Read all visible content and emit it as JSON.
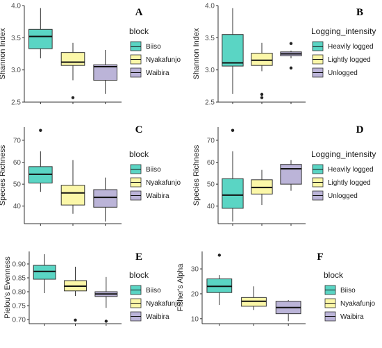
{
  "chart_data": [
    {
      "type": "box",
      "panel_label": "A",
      "ylabel": "Shannon Index",
      "ylim": [
        2.5,
        4.0
      ],
      "yticks": [
        2.5,
        3.0,
        3.5,
        4.0
      ],
      "ytick_labels": [
        "2.5",
        "3.0",
        "3.5",
        "4.0"
      ],
      "legend_title": "block",
      "categories": [
        "Biiso",
        "Nyakafunjo",
        "Waibira"
      ],
      "colors": [
        "#5ad5c4",
        "#fbf7a8",
        "#bbb4d8"
      ],
      "boxes": [
        {
          "whisker_low": 3.18,
          "q1": 3.33,
          "median": 3.52,
          "q3": 3.63,
          "whisker_high": 3.96,
          "outliers": []
        },
        {
          "whisker_low": 2.84,
          "q1": 3.07,
          "median": 3.12,
          "q3": 3.27,
          "whisker_high": 3.42,
          "outliers": [
            2.57
          ]
        },
        {
          "whisker_low": 2.63,
          "q1": 2.84,
          "median": 3.05,
          "q3": 3.08,
          "whisker_high": 3.31,
          "outliers": []
        }
      ]
    },
    {
      "type": "box",
      "panel_label": "B",
      "ylabel": "Shannon Index",
      "ylim": [
        2.5,
        4.0
      ],
      "yticks": [
        2.5,
        3.0,
        3.5,
        4.0
      ],
      "ytick_labels": [
        "2.5",
        "3.0",
        "3.5",
        "4.0"
      ],
      "legend_title": "Logging_intensity",
      "categories": [
        "Heavily logged",
        "Lightly logged",
        "Unlogged"
      ],
      "colors": [
        "#5ad5c4",
        "#fbf7a8",
        "#bbb4d8"
      ],
      "boxes": [
        {
          "whisker_low": 2.63,
          "q1": 3.06,
          "median": 3.11,
          "q3": 3.55,
          "whisker_high": 3.96,
          "outliers": []
        },
        {
          "whisker_low": 2.98,
          "q1": 3.07,
          "median": 3.15,
          "q3": 3.26,
          "whisker_high": 3.42,
          "outliers": [
            2.57,
            2.62
          ]
        },
        {
          "whisker_low": 3.18,
          "q1": 3.22,
          "median": 3.25,
          "q3": 3.28,
          "whisker_high": 3.3,
          "outliers": [
            3.03,
            3.41
          ]
        }
      ]
    },
    {
      "type": "box",
      "panel_label": "C",
      "ylabel": "Species Richness",
      "ylim": [
        32,
        76
      ],
      "yticks": [
        40,
        50,
        60,
        70
      ],
      "ytick_labels": [
        "40",
        "50",
        "60",
        "70"
      ],
      "legend_title": "block",
      "categories": [
        "Biiso",
        "Nyakafunjo",
        "Waibira"
      ],
      "colors": [
        "#5ad5c4",
        "#fbf7a8",
        "#bbb4d8"
      ],
      "boxes": [
        {
          "whisker_low": 46.5,
          "q1": 50.5,
          "median": 54.5,
          "q3": 58.0,
          "whisker_high": 65.0,
          "outliers": [
            74.5
          ]
        },
        {
          "whisker_low": 36.5,
          "q1": 40.5,
          "median": 46.0,
          "q3": 49.5,
          "whisker_high": 61.0,
          "outliers": []
        },
        {
          "whisker_low": 33.0,
          "q1": 39.5,
          "median": 44.0,
          "q3": 47.5,
          "whisker_high": 53.0,
          "outliers": []
        }
      ]
    },
    {
      "type": "box",
      "panel_label": "D",
      "ylabel": "Species Richness",
      "ylim": [
        32,
        76
      ],
      "yticks": [
        40,
        50,
        60,
        70
      ],
      "ytick_labels": [
        "40",
        "50",
        "60",
        "70"
      ],
      "legend_title": "Logging_intensity",
      "categories": [
        "Heavily logged",
        "Lightly logged",
        "Unlogged"
      ],
      "colors": [
        "#5ad5c4",
        "#fbf7a8",
        "#bbb4d8"
      ],
      "boxes": [
        {
          "whisker_low": 33.0,
          "q1": 39.0,
          "median": 45.0,
          "q3": 52.5,
          "whisker_high": 65.0,
          "outliers": [
            74.5
          ]
        },
        {
          "whisker_low": 40.5,
          "q1": 45.5,
          "median": 48.5,
          "q3": 52.0,
          "whisker_high": 56.5,
          "outliers": []
        },
        {
          "whisker_low": 47.0,
          "q1": 50.0,
          "median": 57.0,
          "q3": 59.0,
          "whisker_high": 61.0,
          "outliers": []
        }
      ]
    },
    {
      "type": "box",
      "panel_label": "E",
      "ylabel": "Pielou's Evenness",
      "ylim": [
        0.685,
        0.945
      ],
      "yticks": [
        0.7,
        0.75,
        0.8,
        0.85,
        0.9
      ],
      "ytick_labels": [
        "0.70",
        "0.75",
        "0.80",
        "0.85",
        "0.90"
      ],
      "legend_title": "block",
      "categories": [
        "Biiso",
        "Nyakafunjo",
        "Waibira"
      ],
      "colors": [
        "#5ad5c4",
        "#fbf7a8",
        "#bbb4d8"
      ],
      "boxes": [
        {
          "whisker_low": 0.795,
          "q1": 0.845,
          "median": 0.873,
          "q3": 0.895,
          "whisker_high": 0.935,
          "outliers": []
        },
        {
          "whisker_low": 0.785,
          "q1": 0.803,
          "median": 0.82,
          "q3": 0.84,
          "whisker_high": 0.89,
          "outliers": [
            0.698
          ]
        },
        {
          "whisker_low": 0.742,
          "q1": 0.783,
          "median": 0.792,
          "q3": 0.8,
          "whisker_high": 0.853,
          "outliers": [
            0.694
          ]
        }
      ]
    },
    {
      "type": "box",
      "panel_label": "F",
      "ylabel": "Fisher's Alpha",
      "ylim": [
        8,
        37
      ],
      "yticks": [
        10,
        20,
        30
      ],
      "ytick_labels": [
        "10",
        "20",
        "30"
      ],
      "legend_title": "block",
      "categories": [
        "Biiso",
        "Nyakafunjo",
        "Waibira"
      ],
      "colors": [
        "#5ad5c4",
        "#fbf7a8",
        "#bbb4d8"
      ],
      "boxes": [
        {
          "whisker_low": 15.5,
          "q1": 20.5,
          "median": 23.0,
          "q3": 26.0,
          "whisker_high": 27.5,
          "outliers": [
            35.5
          ]
        },
        {
          "whisker_low": 13.5,
          "q1": 15.0,
          "median": 17.0,
          "q3": 18.5,
          "whisker_high": 23.0,
          "outliers": []
        },
        {
          "whisker_low": 9.0,
          "q1": 12.0,
          "median": 14.5,
          "q3": 17.0,
          "whisker_high": 17.5,
          "outliers": []
        }
      ]
    }
  ]
}
